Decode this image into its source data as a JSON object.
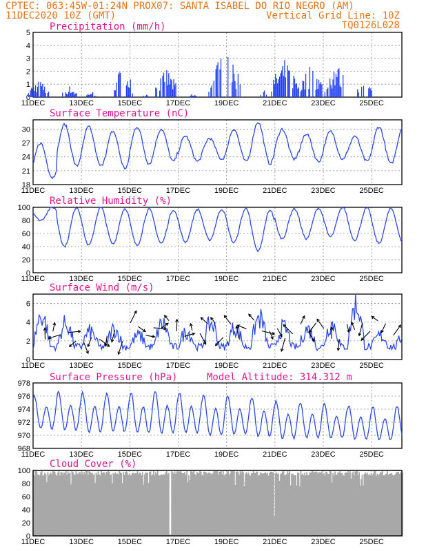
{
  "header": {
    "line1": "CPTEC:   063:45W-01:24N   PROX07: SANTA ISABEL DO RIO NEGRO (AM)",
    "line2_left": "11DEC2020 10Z (GMT)",
    "line2_right": "Vertical Grid Line: 10Z",
    "line3_right": "TQ0126L028"
  },
  "x_axis": {
    "labels": [
      "11DEC",
      "13DEC",
      "15DEC",
      "17DEC",
      "19DEC",
      "21DEC",
      "23DEC",
      "25DEC"
    ],
    "label_days": [
      0,
      2,
      4,
      6,
      8,
      10,
      12,
      14
    ],
    "start": "11DEC2020 10Z",
    "range_days": [
      0,
      15.25
    ]
  },
  "colors": {
    "header": "#e8741a",
    "title": "#e0168a",
    "series": "#2a47e8",
    "cloud": "#a8a8a8"
  },
  "chart_data": [
    {
      "id": "precip",
      "type": "bar",
      "title": "Precipitation (mm/h)",
      "ylim": [
        0,
        5
      ],
      "yticks": [
        "0",
        "1",
        "2",
        "3",
        "4",
        "5"
      ],
      "bursts": [
        {
          "day": 0.2,
          "width": 0.9,
          "peak": 1.4
        },
        {
          "day": 1.5,
          "width": 0.6,
          "peak": 0.9
        },
        {
          "day": 2.4,
          "width": 0.4,
          "peak": 0.5
        },
        {
          "day": 3.7,
          "width": 0.8,
          "peak": 2.7
        },
        {
          "day": 4.7,
          "width": 0.3,
          "peak": 0.3
        },
        {
          "day": 5.5,
          "width": 0.9,
          "peak": 2.3
        },
        {
          "day": 6.6,
          "width": 0.3,
          "peak": 0.3
        },
        {
          "day": 7.9,
          "width": 1.3,
          "peak": 3.7
        },
        {
          "day": 9.5,
          "width": 0.4,
          "peak": 0.6
        },
        {
          "day": 10.4,
          "width": 1.2,
          "peak": 3.0
        },
        {
          "day": 11.5,
          "width": 0.9,
          "peak": 2.8
        },
        {
          "day": 12.5,
          "width": 0.9,
          "peak": 2.9
        },
        {
          "day": 13.7,
          "width": 0.6,
          "peak": 1.6
        }
      ]
    },
    {
      "id": "temp",
      "type": "line",
      "title": "Surface Temperature (nC)",
      "ylim": [
        18,
        32
      ],
      "yticks": [
        "18",
        "21",
        "24",
        "27",
        "30"
      ],
      "ytick_values": [
        18,
        21,
        24,
        27,
        30
      ],
      "daily_max": [
        27.0,
        31.0,
        30.5,
        29.5,
        30.5,
        30.0,
        28.5,
        28.0,
        30.0,
        31.5,
        30.0,
        29.0,
        29.5,
        28.5,
        30.5
      ],
      "daily_min": [
        19.5,
        22.0,
        22.0,
        21.5,
        22.5,
        23.0,
        23.0,
        23.5,
        23.0,
        22.5,
        23.5,
        23.0,
        23.5,
        23.0,
        22.5
      ]
    },
    {
      "id": "rh",
      "type": "line",
      "title": "Relative Humidity (%)",
      "ylim": [
        0,
        100
      ],
      "yticks": [
        "0",
        "20",
        "40",
        "60",
        "80",
        "100"
      ],
      "ytick_values": [
        0,
        20,
        40,
        60,
        80,
        100
      ],
      "daily_min": [
        80,
        40,
        42,
        44,
        42,
        45,
        47,
        50,
        46,
        33,
        52,
        52,
        55,
        50,
        45
      ],
      "daily_max": [
        100,
        100,
        100,
        98,
        97,
        96,
        97,
        97,
        98,
        96,
        98,
        99,
        100,
        99,
        98
      ]
    },
    {
      "id": "wind",
      "type": "line",
      "title": "Surface Wind (m/s)",
      "ylim": [
        0,
        7
      ],
      "yticks": [
        "0",
        "2",
        "4",
        "6"
      ],
      "ytick_values": [
        0,
        2,
        4,
        6
      ],
      "daily_peak": [
        5.5,
        4.5,
        3.5,
        3.8,
        3.0,
        4.5,
        3.5,
        4.5,
        4.0,
        5.2,
        4.0,
        3.8,
        4.5,
        6.8,
        3.0
      ]
    },
    {
      "id": "pres",
      "type": "line",
      "title": "Surface Pressure (hPa)",
      "annotation": "Model Altitude: 314.312 m",
      "ylim": [
        968,
        978
      ],
      "yticks": [
        "968",
        "970",
        "972",
        "974",
        "976",
        "978"
      ],
      "ytick_values": [
        968,
        970,
        972,
        974,
        976,
        978
      ],
      "daily_max": [
        976.0,
        976.6,
        976.5,
        976.4,
        976.5,
        976.8,
        976.5,
        976.2,
        976.0,
        975.8,
        975.2,
        975.0,
        974.8,
        974.5,
        974.4
      ],
      "daily_min": [
        970.2,
        969.8,
        969.5,
        969.6,
        969.4,
        969.2,
        969.3,
        969.0,
        969.2,
        968.8,
        968.6,
        968.8,
        968.7,
        968.6,
        968.5
      ]
    },
    {
      "id": "cloud",
      "type": "area",
      "title": "Cloud Cover (%)",
      "ylim": [
        0,
        100
      ],
      "yticks": [
        "0",
        "20",
        "40",
        "60",
        "80",
        "100"
      ],
      "ytick_values": [
        0,
        20,
        40,
        60,
        80,
        100
      ],
      "typical": 96
    }
  ]
}
